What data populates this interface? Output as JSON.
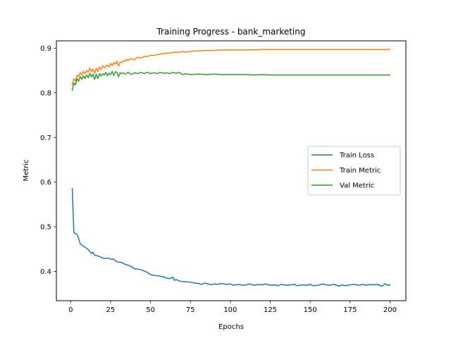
{
  "chart_data": {
    "type": "line",
    "title": "Training Progress - bank_marketing",
    "xlabel": "Epochs",
    "ylabel": "Metric",
    "xlim": [
      -8.95,
      209.95
    ],
    "ylim": [
      0.3345,
      0.9165
    ],
    "xticks": [
      0,
      25,
      50,
      75,
      100,
      125,
      150,
      175,
      200
    ],
    "yticks": [
      0.4,
      0.5,
      0.6,
      0.7,
      0.8,
      0.9
    ],
    "ytick_labels": [
      "0.4",
      "0.5",
      "0.6",
      "0.7",
      "0.8",
      "0.9"
    ],
    "grid": false,
    "legend_position": "center-right",
    "series": [
      {
        "name": "Train Loss",
        "color": "#1f77b4",
        "points": [
          [
            1,
            0.586
          ],
          [
            2,
            0.487
          ],
          [
            3,
            0.485
          ],
          [
            4,
            0.483
          ],
          [
            5,
            0.474
          ],
          [
            6,
            0.462
          ],
          [
            8,
            0.456
          ],
          [
            10,
            0.452
          ],
          [
            12,
            0.445
          ],
          [
            13,
            0.44
          ],
          [
            14,
            0.443
          ],
          [
            15,
            0.436
          ],
          [
            17,
            0.435
          ],
          [
            19,
            0.432
          ],
          [
            20,
            0.43
          ],
          [
            22,
            0.429
          ],
          [
            24,
            0.43
          ],
          [
            25,
            0.427
          ],
          [
            27,
            0.428
          ],
          [
            28,
            0.423
          ],
          [
            30,
            0.421
          ],
          [
            32,
            0.42
          ],
          [
            34,
            0.416
          ],
          [
            36,
            0.414
          ],
          [
            38,
            0.411
          ],
          [
            40,
            0.406
          ],
          [
            42,
            0.405
          ],
          [
            44,
            0.404
          ],
          [
            46,
            0.401
          ],
          [
            48,
            0.398
          ],
          [
            50,
            0.393
          ],
          [
            52,
            0.391
          ],
          [
            55,
            0.39
          ],
          [
            58,
            0.388
          ],
          [
            60,
            0.385
          ],
          [
            62,
            0.384
          ],
          [
            64,
            0.387
          ],
          [
            65,
            0.38
          ],
          [
            66,
            0.382
          ],
          [
            68,
            0.379
          ],
          [
            70,
            0.377
          ],
          [
            72,
            0.377
          ],
          [
            75,
            0.376
          ],
          [
            78,
            0.374
          ],
          [
            80,
            0.373
          ],
          [
            82,
            0.371
          ],
          [
            84,
            0.374
          ],
          [
            86,
            0.372
          ],
          [
            88,
            0.37
          ],
          [
            90,
            0.372
          ],
          [
            92,
            0.371
          ],
          [
            94,
            0.373
          ],
          [
            96,
            0.372
          ],
          [
            98,
            0.371
          ],
          [
            100,
            0.372
          ],
          [
            102,
            0.369
          ],
          [
            105,
            0.371
          ],
          [
            108,
            0.369
          ],
          [
            110,
            0.37
          ],
          [
            112,
            0.372
          ],
          [
            115,
            0.369
          ],
          [
            118,
            0.371
          ],
          [
            120,
            0.37
          ],
          [
            122,
            0.372
          ],
          [
            125,
            0.369
          ],
          [
            128,
            0.37
          ],
          [
            130,
            0.368
          ],
          [
            132,
            0.371
          ],
          [
            135,
            0.369
          ],
          [
            138,
            0.37
          ],
          [
            140,
            0.371
          ],
          [
            142,
            0.368
          ],
          [
            145,
            0.37
          ],
          [
            148,
            0.369
          ],
          [
            150,
            0.371
          ],
          [
            152,
            0.368
          ],
          [
            155,
            0.369
          ],
          [
            158,
            0.372
          ],
          [
            160,
            0.37
          ],
          [
            162,
            0.369
          ],
          [
            165,
            0.371
          ],
          [
            168,
            0.367
          ],
          [
            170,
            0.37
          ],
          [
            172,
            0.368
          ],
          [
            175,
            0.37
          ],
          [
            178,
            0.371
          ],
          [
            180,
            0.369
          ],
          [
            183,
            0.371
          ],
          [
            185,
            0.369
          ],
          [
            188,
            0.371
          ],
          [
            190,
            0.37
          ],
          [
            192,
            0.371
          ],
          [
            195,
            0.367
          ],
          [
            197,
            0.372
          ],
          [
            199,
            0.369
          ],
          [
            200,
            0.37
          ]
        ]
      },
      {
        "name": "Train Metric",
        "color": "#ff7f0e",
        "points": [
          [
            1,
            0.819
          ],
          [
            2,
            0.832
          ],
          [
            3,
            0.826
          ],
          [
            4,
            0.84
          ],
          [
            5,
            0.836
          ],
          [
            6,
            0.845
          ],
          [
            7,
            0.84
          ],
          [
            8,
            0.848
          ],
          [
            9,
            0.843
          ],
          [
            10,
            0.85
          ],
          [
            11,
            0.846
          ],
          [
            12,
            0.856
          ],
          [
            13,
            0.848
          ],
          [
            14,
            0.853
          ],
          [
            15,
            0.844
          ],
          [
            16,
            0.855
          ],
          [
            17,
            0.848
          ],
          [
            18,
            0.858
          ],
          [
            19,
            0.852
          ],
          [
            20,
            0.861
          ],
          [
            21,
            0.856
          ],
          [
            22,
            0.86
          ],
          [
            23,
            0.862
          ],
          [
            24,
            0.858
          ],
          [
            25,
            0.866
          ],
          [
            26,
            0.861
          ],
          [
            27,
            0.868
          ],
          [
            28,
            0.864
          ],
          [
            29,
            0.871
          ],
          [
            30,
            0.86
          ],
          [
            31,
            0.869
          ],
          [
            32,
            0.868
          ],
          [
            33,
            0.872
          ],
          [
            34,
            0.87
          ],
          [
            35,
            0.875
          ],
          [
            36,
            0.873
          ],
          [
            38,
            0.877
          ],
          [
            40,
            0.874
          ],
          [
            42,
            0.88
          ],
          [
            44,
            0.878
          ],
          [
            46,
            0.882
          ],
          [
            48,
            0.881
          ],
          [
            50,
            0.884
          ],
          [
            52,
            0.884
          ],
          [
            55,
            0.886
          ],
          [
            58,
            0.888
          ],
          [
            60,
            0.889
          ],
          [
            62,
            0.889
          ],
          [
            65,
            0.891
          ],
          [
            68,
            0.891
          ],
          [
            70,
            0.893
          ],
          [
            72,
            0.891
          ],
          [
            75,
            0.893
          ],
          [
            80,
            0.894
          ],
          [
            85,
            0.895
          ],
          [
            90,
            0.895
          ],
          [
            95,
            0.896
          ],
          [
            100,
            0.896
          ],
          [
            110,
            0.896
          ],
          [
            120,
            0.897
          ],
          [
            130,
            0.897
          ],
          [
            140,
            0.897
          ],
          [
            150,
            0.897
          ],
          [
            160,
            0.897
          ],
          [
            170,
            0.897
          ],
          [
            180,
            0.897
          ],
          [
            190,
            0.897
          ],
          [
            200,
            0.897
          ]
        ]
      },
      {
        "name": "Val Metric",
        "color": "#2ca02c",
        "points": [
          [
            1,
            0.806
          ],
          [
            2,
            0.822
          ],
          [
            3,
            0.818
          ],
          [
            4,
            0.832
          ],
          [
            5,
            0.826
          ],
          [
            6,
            0.836
          ],
          [
            7,
            0.83
          ],
          [
            8,
            0.838
          ],
          [
            9,
            0.832
          ],
          [
            10,
            0.84
          ],
          [
            11,
            0.834
          ],
          [
            12,
            0.844
          ],
          [
            13,
            0.836
          ],
          [
            14,
            0.842
          ],
          [
            15,
            0.83
          ],
          [
            16,
            0.842
          ],
          [
            17,
            0.832
          ],
          [
            18,
            0.843
          ],
          [
            19,
            0.838
          ],
          [
            20,
            0.843
          ],
          [
            21,
            0.84
          ],
          [
            22,
            0.846
          ],
          [
            23,
            0.838
          ],
          [
            24,
            0.844
          ],
          [
            25,
            0.841
          ],
          [
            26,
            0.848
          ],
          [
            27,
            0.839
          ],
          [
            28,
            0.847
          ],
          [
            29,
            0.846
          ],
          [
            30,
            0.836
          ],
          [
            31,
            0.845
          ],
          [
            32,
            0.843
          ],
          [
            33,
            0.845
          ],
          [
            34,
            0.842
          ],
          [
            36,
            0.846
          ],
          [
            38,
            0.841
          ],
          [
            40,
            0.845
          ],
          [
            42,
            0.843
          ],
          [
            44,
            0.846
          ],
          [
            46,
            0.843
          ],
          [
            48,
            0.846
          ],
          [
            50,
            0.843
          ],
          [
            52,
            0.845
          ],
          [
            54,
            0.843
          ],
          [
            56,
            0.846
          ],
          [
            58,
            0.844
          ],
          [
            60,
            0.845
          ],
          [
            62,
            0.843
          ],
          [
            64,
            0.846
          ],
          [
            66,
            0.844
          ],
          [
            68,
            0.846
          ],
          [
            70,
            0.841
          ],
          [
            72,
            0.843
          ],
          [
            75,
            0.841
          ],
          [
            80,
            0.842
          ],
          [
            85,
            0.841
          ],
          [
            90,
            0.842
          ],
          [
            95,
            0.841
          ],
          [
            100,
            0.841
          ],
          [
            105,
            0.841
          ],
          [
            110,
            0.841
          ],
          [
            115,
            0.84
          ],
          [
            120,
            0.841
          ],
          [
            125,
            0.84
          ],
          [
            130,
            0.84
          ],
          [
            140,
            0.84
          ],
          [
            150,
            0.84
          ],
          [
            160,
            0.84
          ],
          [
            170,
            0.84
          ],
          [
            180,
            0.84
          ],
          [
            190,
            0.84
          ],
          [
            200,
            0.84
          ]
        ]
      }
    ]
  }
}
